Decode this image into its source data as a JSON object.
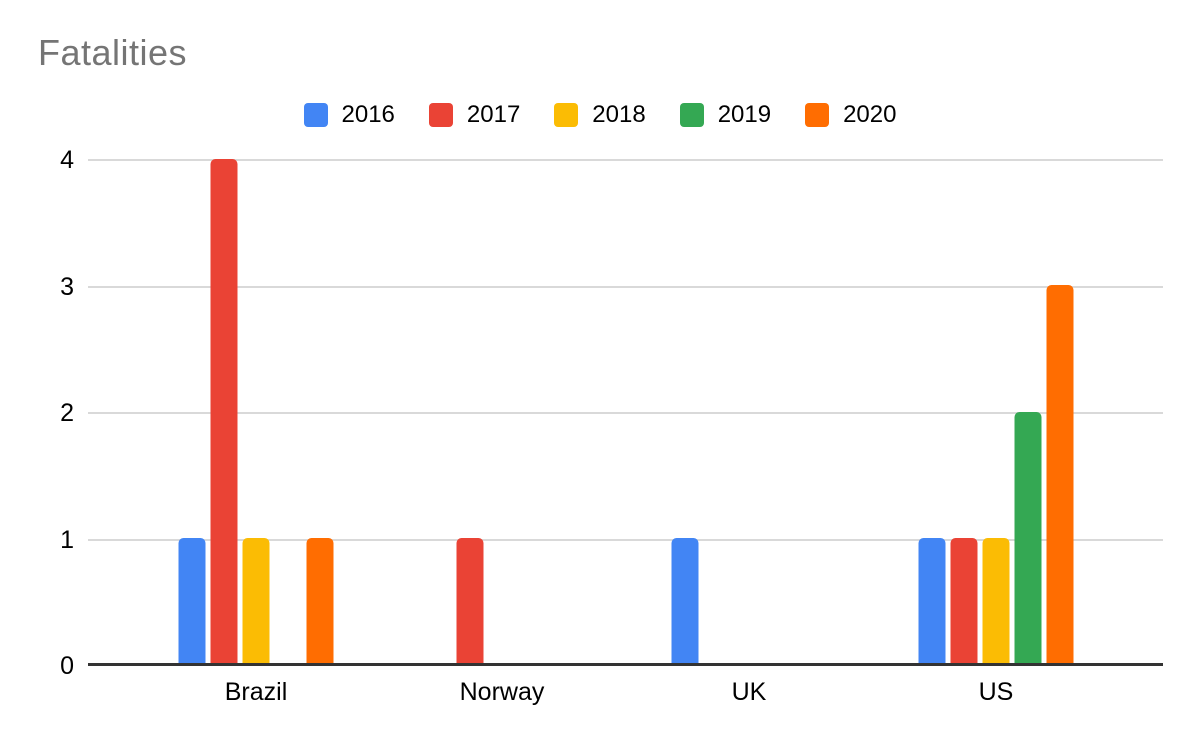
{
  "chart_data": {
    "type": "bar",
    "title": "Fatalities",
    "categories": [
      "Brazil",
      "Norway",
      "UK",
      "US"
    ],
    "series": [
      {
        "name": "2016",
        "color": "#4285F4",
        "values": [
          1,
          0,
          1,
          1
        ]
      },
      {
        "name": "2017",
        "color": "#EA4335",
        "values": [
          4,
          1,
          0,
          1
        ]
      },
      {
        "name": "2018",
        "color": "#FBBC04",
        "values": [
          1,
          0,
          0,
          1
        ]
      },
      {
        "name": "2019",
        "color": "#34A853",
        "values": [
          0,
          0,
          0,
          2
        ]
      },
      {
        "name": "2020",
        "color": "#FF6D01",
        "values": [
          1,
          0,
          0,
          3
        ]
      }
    ],
    "xlabel": "",
    "ylabel": "",
    "ylim": [
      0,
      4
    ],
    "yticks": [
      0,
      1,
      2,
      3,
      4
    ],
    "grid": true,
    "legend_position": "top",
    "colors": {
      "title_text": "#757575",
      "axis_text": "#000000",
      "gridline": "#D9D9D9",
      "baseline": "#333333",
      "background": "#FFFFFF"
    }
  }
}
